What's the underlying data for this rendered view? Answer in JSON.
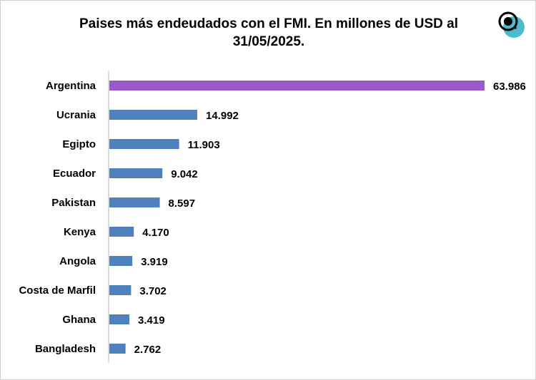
{
  "chart_data": {
    "type": "bar",
    "orientation": "horizontal",
    "title": "Paises más endeudados con el FMI. En millones de USD al 31/05/2025.",
    "categories": [
      "Argentina",
      "Ucrania",
      "Egipto",
      "Ecuador",
      "Pakistan",
      "Kenya",
      "Angola",
      "Costa de Marfil",
      "Ghana",
      "Bangladesh"
    ],
    "values": [
      63986,
      14992,
      11903,
      9042,
      8597,
      4170,
      3919,
      3702,
      3419,
      2762
    ],
    "data_labels": [
      "63.986",
      "14.992",
      "11.903",
      "9.042",
      "8.597",
      "4.170",
      "3.919",
      "3.702",
      "3.419",
      "2.762"
    ],
    "highlight_category": "Argentina",
    "colors": {
      "highlight": "#9b59c9",
      "default": "#4f81bd",
      "logo_circle": "#4bbccf"
    },
    "xlim": [
      0,
      64000
    ],
    "grid": false,
    "legend": "none"
  },
  "logo": {
    "icon": "at-sign-circle-logo"
  }
}
